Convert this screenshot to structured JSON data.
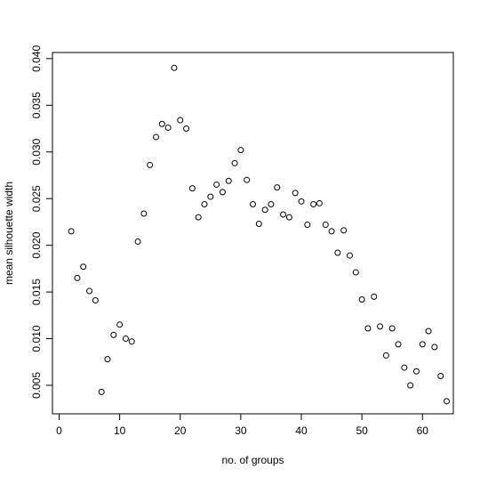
{
  "chart_data": {
    "type": "scatter",
    "title": "",
    "xlabel": "no. of groups",
    "ylabel": "mean silhouette width",
    "xlim": [
      -1.1,
      65.1
    ],
    "ylim": [
      0.00195,
      0.04065
    ],
    "x_ticks": [
      0,
      10,
      20,
      30,
      40,
      50,
      60
    ],
    "y_ticks": [
      0.005,
      0.01,
      0.015,
      0.02,
      0.025,
      0.03,
      0.035,
      0.04
    ],
    "y_tick_labels": [
      "0.005",
      "0.010",
      "0.015",
      "0.020",
      "0.025",
      "0.030",
      "0.035",
      "0.040"
    ],
    "grid": false,
    "marker": "open-circle",
    "x": [
      2,
      3,
      4,
      5,
      6,
      7,
      8,
      9,
      10,
      11,
      12,
      13,
      14,
      15,
      16,
      17,
      18,
      19,
      20,
      21,
      22,
      23,
      24,
      25,
      26,
      27,
      28,
      29,
      30,
      31,
      32,
      33,
      34,
      35,
      36,
      37,
      38,
      39,
      40,
      41,
      42,
      43,
      44,
      45,
      46,
      47,
      48,
      49,
      50,
      51,
      52,
      53,
      54,
      55,
      56,
      57,
      58,
      59,
      60,
      61,
      62,
      63,
      64
    ],
    "y": [
      0.0215,
      0.0165,
      0.0177,
      0.0151,
      0.0141,
      0.0043,
      0.0078,
      0.0104,
      0.0115,
      0.01,
      0.0097,
      0.0204,
      0.0234,
      0.0286,
      0.0316,
      0.033,
      0.0326,
      0.039,
      0.0334,
      0.0325,
      0.0261,
      0.023,
      0.0244,
      0.0252,
      0.0265,
      0.0257,
      0.0269,
      0.0288,
      0.0302,
      0.027,
      0.0244,
      0.0223,
      0.0238,
      0.0244,
      0.0262,
      0.0233,
      0.023,
      0.0256,
      0.0247,
      0.0222,
      0.0244,
      0.0245,
      0.0222,
      0.0215,
      0.0192,
      0.0216,
      0.0189,
      0.0171,
      0.0142,
      0.0111,
      0.0145,
      0.0113,
      0.0082,
      0.0111,
      0.0094,
      0.0069,
      0.005,
      0.0065,
      0.0094,
      0.0108,
      0.0091,
      0.006,
      0.0033
    ]
  }
}
